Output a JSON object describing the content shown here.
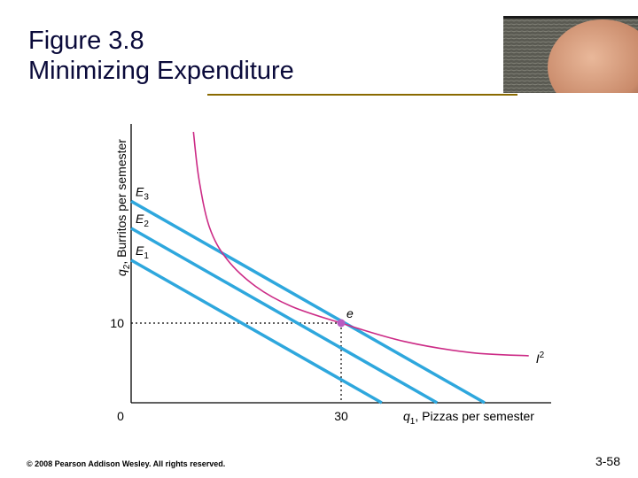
{
  "slide": {
    "title": "Figure 3.8",
    "subtitle": "Minimizing Expenditure",
    "footer": "© 2008 Pearson Addison Wesley. All rights reserved.",
    "page": "3-58"
  },
  "colors": {
    "budget_line": "#2ea7dd",
    "indifference_curve": "#cc2b86",
    "point": "#b85bc2",
    "title": "#0a0a3a",
    "rule": "#8a6a00"
  },
  "chart_data": {
    "type": "line",
    "title": "",
    "xlabel": "q1, Pizzas per semester",
    "ylabel": "q2, Burritos per semester",
    "xlim": [
      0,
      60
    ],
    "ylim": [
      0,
      35
    ],
    "x_ticks": [
      {
        "value": 0,
        "label": "0"
      },
      {
        "value": 30,
        "label": "30"
      }
    ],
    "y_ticks": [
      {
        "value": 10,
        "label": "10"
      }
    ],
    "series": [
      {
        "name": "E3",
        "x": [
          0,
          50.5
        ],
        "y": [
          25.3,
          0
        ]
      },
      {
        "name": "E2",
        "x": [
          0,
          43.7
        ],
        "y": [
          21.9,
          0
        ]
      },
      {
        "name": "E1",
        "x": [
          0,
          35.8
        ],
        "y": [
          17.9,
          0
        ]
      },
      {
        "name": "I2",
        "x": [
          8.9,
          9.7,
          11.2,
          13.7,
          17.8,
          22.9,
          30.0,
          39.0,
          48.5,
          56.8
        ],
        "y": [
          34.0,
          28.0,
          22.0,
          18.0,
          14.6,
          12.1,
          10.0,
          7.7,
          6.3,
          5.9
        ]
      }
    ],
    "point": {
      "label": "e",
      "x": 30,
      "y": 10
    }
  }
}
